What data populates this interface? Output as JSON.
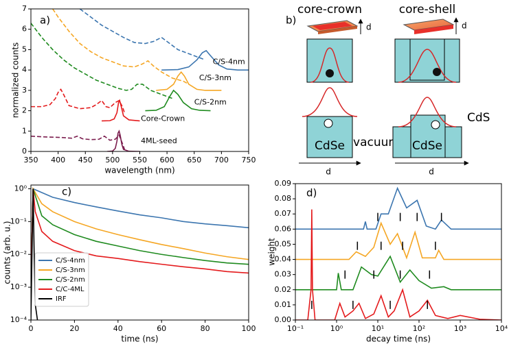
{
  "chart_data": [
    {
      "type": "line",
      "panel_label": "a)",
      "xlabel": "wavelength (nm)",
      "ylabel": "normalized counts",
      "xlim": [
        350,
        750
      ],
      "ylim": [
        0,
        7
      ],
      "xticks": [
        350,
        400,
        450,
        500,
        550,
        600,
        650,
        700,
        750
      ],
      "yticks": [
        0,
        1,
        2,
        3,
        4,
        5,
        6,
        7
      ],
      "series": [
        {
          "color": "#7b1d4e",
          "style": "dashed",
          "x": [
            350,
            370,
            390,
            410,
            425,
            435,
            445,
            460,
            475,
            485,
            495,
            505,
            512,
            518,
            522
          ],
          "values": [
            0.75,
            0.72,
            0.7,
            0.68,
            0.65,
            0.75,
            0.62,
            0.58,
            0.6,
            0.75,
            0.55,
            0.6,
            0.8,
            0.4,
            0.1
          ]
        },
        {
          "name": "4ML-seed",
          "color": "#7b1d4e",
          "style": "solid",
          "x": [
            490,
            500,
            505,
            508,
            510,
            512,
            514,
            517,
            520,
            530,
            550
          ],
          "values": [
            0,
            0.02,
            0.15,
            0.5,
            0.9,
            1.0,
            0.8,
            0.35,
            0.1,
            0.01,
            0
          ]
        },
        {
          "color": "#e41a1c",
          "style": "dashed",
          "x": [
            350,
            370,
            385,
            395,
            400,
            405,
            410,
            420,
            440,
            460,
            470,
            480,
            488,
            495,
            505,
            512,
            518,
            522
          ],
          "values": [
            2.2,
            2.2,
            2.3,
            2.6,
            2.9,
            3.05,
            2.8,
            2.25,
            2.1,
            2.15,
            2.3,
            2.5,
            2.2,
            2.15,
            2.4,
            2.5,
            2.2,
            1.9
          ]
        },
        {
          "name": "Core-Crown",
          "color": "#e41a1c",
          "style": "solid",
          "x": [
            480,
            495,
            503,
            508,
            511,
            513,
            516,
            520,
            530,
            550
          ],
          "values": [
            1.5,
            1.51,
            1.6,
            1.9,
            2.4,
            2.5,
            2.2,
            1.75,
            1.55,
            1.5
          ]
        },
        {
          "color": "#1e8a1e",
          "style": "dashed",
          "x": [
            350,
            370,
            390,
            410,
            430,
            450,
            470,
            490,
            510,
            525,
            535,
            545,
            555,
            570,
            590,
            610
          ],
          "values": [
            6.3,
            5.6,
            5.0,
            4.5,
            4.1,
            3.8,
            3.5,
            3.3,
            3.1,
            3.0,
            3.05,
            3.3,
            3.3,
            3.0,
            2.8,
            2.6
          ]
        },
        {
          "name": "C/S-2nm",
          "color": "#1e8a1e",
          "style": "solid",
          "x": [
            560,
            580,
            595,
            605,
            612,
            620,
            630,
            645,
            660,
            680
          ],
          "values": [
            2.0,
            2.02,
            2.2,
            2.7,
            3.0,
            2.8,
            2.4,
            2.1,
            2.02,
            2.0
          ]
        },
        {
          "color": "#f5a623",
          "style": "dashed",
          "x": [
            390,
            400,
            420,
            440,
            460,
            480,
            500,
            520,
            540,
            555,
            565,
            575,
            590,
            610,
            630,
            640
          ],
          "values": [
            7.0,
            6.6,
            5.9,
            5.3,
            4.9,
            4.6,
            4.4,
            4.2,
            4.15,
            4.3,
            4.45,
            4.2,
            3.9,
            3.6,
            3.45,
            3.3
          ]
        },
        {
          "name": "C/S-3nm",
          "color": "#f5a623",
          "style": "solid",
          "x": [
            580,
            600,
            612,
            620,
            626,
            632,
            640,
            655,
            670,
            700
          ],
          "values": [
            3.0,
            3.05,
            3.3,
            3.7,
            3.9,
            3.7,
            3.3,
            3.05,
            3.0,
            3.0
          ]
        },
        {
          "color": "#3b75af",
          "style": "dashed",
          "x": [
            440,
            460,
            480,
            500,
            520,
            540,
            560,
            575,
            590,
            600,
            620,
            640,
            660,
            670
          ],
          "values": [
            7.0,
            6.6,
            6.2,
            5.9,
            5.6,
            5.35,
            5.3,
            5.4,
            5.6,
            5.4,
            5.0,
            4.8,
            4.6,
            4.5
          ]
        },
        {
          "name": "C/S-4nm",
          "color": "#3b75af",
          "style": "solid",
          "x": [
            590,
            620,
            640,
            655,
            665,
            672,
            680,
            695,
            710,
            730,
            750
          ],
          "values": [
            4.0,
            4.02,
            4.15,
            4.5,
            4.85,
            4.95,
            4.7,
            4.25,
            4.05,
            4.0,
            4.0
          ]
        }
      ]
    },
    {
      "type": "line",
      "panel_label": "c)",
      "xlabel": "time (ns)",
      "ylabel": "counts (arb. u.)",
      "yscale": "log",
      "legend": "lower left",
      "xlim": [
        0,
        100
      ],
      "ylim": [
        0.0001,
        1.3
      ],
      "xticks": [
        0,
        20,
        40,
        60,
        80,
        100
      ],
      "yticks": [
        {
          "value": 0.0001,
          "label": "10⁻⁴"
        },
        {
          "value": 0.001,
          "label": "10⁻³"
        },
        {
          "value": 0.01,
          "label": "10⁻²"
        },
        {
          "value": 0.1,
          "label": "10⁻¹"
        },
        {
          "value": 1,
          "label": "10⁰"
        }
      ],
      "series": [
        {
          "name": "C/S-4nm",
          "color": "#3b75af",
          "x": [
            0,
            1,
            10,
            20,
            30,
            40,
            50,
            60,
            70,
            80,
            90,
            100
          ],
          "values": [
            0.001,
            1.0,
            0.55,
            0.38,
            0.28,
            0.21,
            0.16,
            0.13,
            0.1,
            0.085,
            0.075,
            0.065
          ]
        },
        {
          "name": "C/S-3nm",
          "color": "#f5a623",
          "x": [
            0,
            1,
            5,
            10,
            20,
            30,
            40,
            50,
            60,
            70,
            80,
            90,
            100
          ],
          "values": [
            0.001,
            1.0,
            0.35,
            0.2,
            0.1,
            0.06,
            0.04,
            0.028,
            0.02,
            0.015,
            0.011,
            0.0085,
            0.007
          ]
        },
        {
          "name": "C/S-2nm",
          "color": "#1e8a1e",
          "x": [
            0,
            1,
            5,
            10,
            20,
            30,
            40,
            50,
            60,
            70,
            80,
            90,
            100
          ],
          "values": [
            0.001,
            1.0,
            0.15,
            0.08,
            0.04,
            0.025,
            0.018,
            0.013,
            0.01,
            0.008,
            0.0065,
            0.0055,
            0.005
          ]
        },
        {
          "name": "C/C-4ML",
          "color": "#e41a1c",
          "x": [
            0,
            1,
            2,
            5,
            10,
            20,
            30,
            40,
            50,
            60,
            70,
            80,
            90,
            100
          ],
          "values": [
            0.001,
            1.0,
            0.2,
            0.05,
            0.025,
            0.013,
            0.009,
            0.0075,
            0.006,
            0.005,
            0.0042,
            0.0036,
            0.003,
            0.0027
          ]
        },
        {
          "name": "IRF",
          "color": "#000000",
          "x": [
            0,
            0.5,
            1,
            1.5,
            2,
            3
          ],
          "values": [
            0.0001,
            0.01,
            1.0,
            0.01,
            0.0003,
            0.0001
          ]
        }
      ]
    },
    {
      "type": "line",
      "panel_label": "d)",
      "xlabel": "decay time (ns)",
      "ylabel": "weight",
      "xscale": "log",
      "xlim": [
        0.1,
        10000
      ],
      "ylim": [
        0,
        0.09
      ],
      "xticks": [
        {
          "value": 0.1,
          "label": "10⁻¹"
        },
        {
          "value": 1,
          "label": "10⁰"
        },
        {
          "value": 10,
          "label": "10¹"
        },
        {
          "value": 100,
          "label": "10²"
        },
        {
          "value": 1000,
          "label": "10³"
        },
        {
          "value": 10000,
          "label": "10⁴"
        }
      ],
      "yticks": [
        {
          "value": 0,
          "label": "0.00"
        },
        0.01,
        0.02,
        0.03,
        0.04,
        0.05,
        0.06,
        0.07,
        0.08,
        0.09
      ],
      "series": [
        {
          "color": "#3b75af",
          "x": [
            0.1,
            4.5,
            5,
            5.5,
            9,
            12,
            18,
            30,
            50,
            90,
            150,
            250,
            350,
            600,
            10000
          ],
          "values": [
            0.06,
            0.06,
            0.065,
            0.06,
            0.06,
            0.07,
            0.07,
            0.087,
            0.074,
            0.079,
            0.062,
            0.06,
            0.066,
            0.06,
            0.06
          ]
        },
        {
          "color": "#f5a623",
          "x": [
            0.1,
            2,
            3,
            5,
            8,
            12,
            20,
            30,
            50,
            80,
            120,
            250,
            300,
            400,
            10000
          ],
          "values": [
            0.04,
            0.04,
            0.045,
            0.042,
            0.048,
            0.064,
            0.05,
            0.057,
            0.041,
            0.058,
            0.041,
            0.041,
            0.046,
            0.04,
            0.04
          ]
        },
        {
          "color": "#1e8a1e",
          "x": [
            0.1,
            1.0,
            1.1,
            1.3,
            2.5,
            4,
            7,
            10,
            20,
            35,
            60,
            100,
            200,
            400,
            600,
            10000
          ],
          "values": [
            0.02,
            0.02,
            0.031,
            0.02,
            0.02,
            0.035,
            0.03,
            0.029,
            0.042,
            0.025,
            0.033,
            0.026,
            0.021,
            0.022,
            0.02,
            0.02
          ]
        },
        {
          "color": "#e41a1c",
          "x": [
            0.1,
            0.2,
            0.24,
            0.25,
            0.26,
            0.3,
            0.9,
            1.2,
            1.6,
            2.5,
            3.5,
            5,
            8,
            12,
            18,
            25,
            40,
            60,
            100,
            160,
            250,
            500,
            1000,
            3000,
            10000
          ],
          "values": [
            0,
            0,
            0.02,
            0.073,
            0.02,
            0,
            0,
            0.011,
            0.002,
            0.006,
            0.011,
            0.001,
            0.004,
            0.016,
            0.002,
            0.006,
            0.02,
            0.002,
            0.006,
            0.013,
            0.003,
            0.001,
            0.003,
            0.0005,
            0
          ]
        }
      ],
      "markers": {
        "x": [
          10,
          35,
          90,
          350,
          3.2,
          12,
          40,
          250,
          1.6,
          8,
          35,
          180,
          0.25,
          2.5,
          20,
          160
        ],
        "y": [
          0.068,
          0.068,
          0.068,
          0.068,
          0.049,
          0.049,
          0.049,
          0.049,
          0.03,
          0.03,
          0.03,
          0.03,
          0.01,
          0.01,
          0.01,
          0.01
        ]
      }
    }
  ],
  "diagram": {
    "panel_label": "b)",
    "structures": [
      {
        "title": "core-crown",
        "core": "CdSe"
      },
      {
        "title": "core-shell",
        "core": "CdSe",
        "shell": "CdS"
      }
    ],
    "medium": "vacuum",
    "thickness_symbol": "d"
  }
}
